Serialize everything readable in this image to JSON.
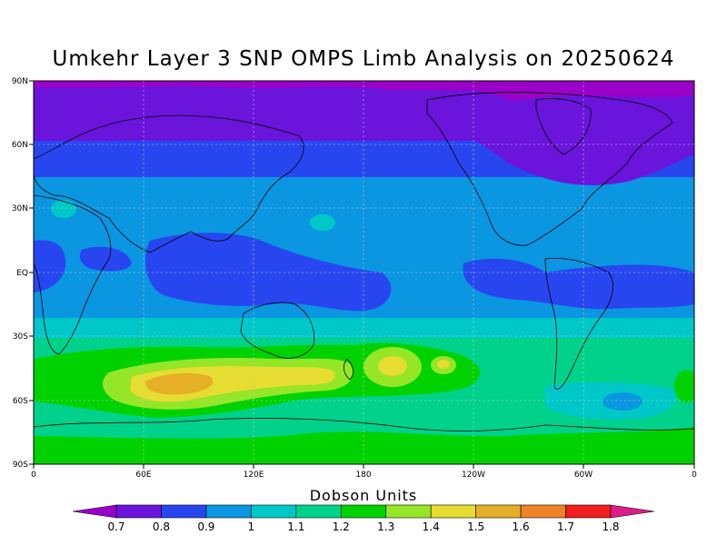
{
  "title": "Umkehr Layer 3 SNP OMPS Limb Analysis on 20250624",
  "units_label": "Dobson Units",
  "lat_ticks": [
    "90N",
    "60N",
    "30N",
    "EQ",
    "30S",
    "60S",
    "90S"
  ],
  "lon_ticks": [
    "0",
    "60E",
    "120E",
    "180",
    "120W",
    "60W",
    "0"
  ],
  "colorbar": {
    "colors": [
      "#9a00c8",
      "#6a14dc",
      "#2846f0",
      "#0a96e0",
      "#00c8c8",
      "#00d28c",
      "#00d200",
      "#96e628",
      "#e6dc32",
      "#e6af28",
      "#f08228",
      "#f01e1e",
      "#dc1e8c"
    ],
    "labels": [
      "0.7",
      "0.8",
      "0.9",
      "1",
      "1.1",
      "1.2",
      "1.3",
      "1.4",
      "1.5",
      "1.6",
      "1.7",
      "1.8"
    ]
  }
}
